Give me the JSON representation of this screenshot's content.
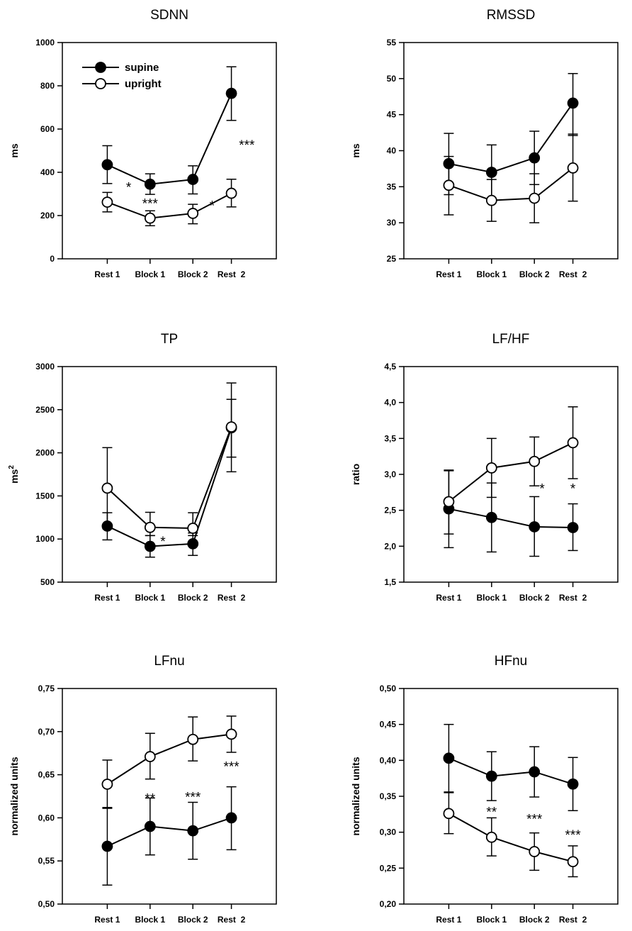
{
  "chart_data": [
    {
      "type": "line",
      "title": "SDNN",
      "ylabel": "ms",
      "ylabel_sup": "",
      "ylim": [
        0,
        1000
      ],
      "yticks": [
        "0",
        "200",
        "400",
        "600",
        "800",
        "1000"
      ],
      "categories": [
        "Rest 1",
        "Block 1",
        "Block 2",
        "Rest  2"
      ],
      "legend": [
        "supine",
        "upright"
      ],
      "series": [
        {
          "name": "supine",
          "values": [
            435,
            345,
            367,
            765
          ],
          "err_low": [
            348,
            298,
            300,
            640
          ],
          "err_high": [
            523,
            393,
            430,
            888
          ]
        },
        {
          "name": "upright",
          "values": [
            262,
            188,
            210,
            303
          ],
          "err_low": [
            217,
            153,
            162,
            240
          ],
          "err_high": [
            307,
            222,
            252,
            368
          ]
        }
      ],
      "annotations": [
        {
          "text": "*",
          "x": 0.5,
          "y": 310
        },
        {
          "text": "***",
          "x": 1.0,
          "y": 235
        },
        {
          "text": "*",
          "x": 2.5,
          "y": 225
        },
        {
          "text": "***",
          "x": 3.4,
          "y": 505
        }
      ]
    },
    {
      "type": "line",
      "title": "RMSSD",
      "ylabel": "ms",
      "ylabel_sup": "",
      "ylim": [
        25,
        55
      ],
      "yticks": [
        "25",
        "30",
        "35",
        "40",
        "45",
        "50",
        "55"
      ],
      "categories": [
        "Rest 1",
        "Block 1",
        "Block 2",
        "Rest  2"
      ],
      "legend": [],
      "series": [
        {
          "name": "supine",
          "values": [
            38.2,
            37.0,
            39.0,
            46.6
          ],
          "err_low": [
            33.9,
            33.1,
            35.3,
            42.1
          ],
          "err_high": [
            42.4,
            40.8,
            42.7,
            50.7
          ]
        },
        {
          "name": "upright",
          "values": [
            35.2,
            33.1,
            33.4,
            37.6
          ],
          "err_low": [
            31.1,
            30.2,
            30.0,
            33.0
          ],
          "err_high": [
            39.2,
            36.0,
            36.8,
            42.3
          ]
        }
      ],
      "annotations": []
    },
    {
      "type": "line",
      "title": "TP",
      "ylabel": "ms",
      "ylabel_sup": "2",
      "ylim": [
        500,
        3000
      ],
      "yticks": [
        "500",
        "1000",
        "1500",
        "2000",
        "2500",
        "3000"
      ],
      "categories": [
        "Rest 1",
        "Block 1",
        "Block 2",
        "Rest  2"
      ],
      "legend": [],
      "series": [
        {
          "name": "supine",
          "values": [
            1150,
            915,
            945,
            2290
          ],
          "err_low": [
            990,
            790,
            810,
            1950
          ],
          "err_high": [
            1305,
            1040,
            1070,
            2620
          ]
        },
        {
          "name": "upright",
          "values": [
            1590,
            1135,
            1125,
            2300
          ],
          "err_low": [
            1120,
            1040,
            1040,
            1780
          ],
          "err_high": [
            2060,
            1310,
            1305,
            2810
          ]
        }
      ],
      "annotations": [
        {
          "text": "*",
          "x": 1.3,
          "y": 920
        }
      ]
    },
    {
      "type": "line",
      "title": "LF/HF",
      "ylabel": "ratio",
      "ylabel_sup": "",
      "ylim": [
        1.5,
        4.5
      ],
      "yticks": [
        "1,5",
        "2,0",
        "2,5",
        "3,0",
        "3,5",
        "4,0",
        "4,5"
      ],
      "categories": [
        "Rest 1",
        "Block 1",
        "Block 2",
        "Rest  2"
      ],
      "legend": [],
      "series": [
        {
          "name": "supine",
          "values": [
            2.52,
            2.4,
            2.27,
            2.26
          ],
          "err_low": [
            1.98,
            1.92,
            1.86,
            1.94
          ],
          "err_high": [
            3.06,
            2.88,
            2.69,
            2.59
          ]
        },
        {
          "name": "upright",
          "values": [
            2.62,
            3.09,
            3.18,
            3.44
          ],
          "err_low": [
            2.17,
            2.68,
            2.84,
            2.94
          ],
          "err_high": [
            3.05,
            3.5,
            3.52,
            3.94
          ]
        }
      ],
      "annotations": [
        {
          "text": "*",
          "x": 2.2,
          "y": 2.74
        },
        {
          "text": "*",
          "x": 3.0,
          "y": 2.74
        }
      ]
    },
    {
      "type": "line",
      "title": "LFnu",
      "ylabel": "normalized units",
      "ylabel_sup": "",
      "ylim": [
        0.5,
        0.75
      ],
      "yticks": [
        "0,50",
        "0,55",
        "0,60",
        "0,65",
        "0,70",
        "0,75"
      ],
      "categories": [
        "Rest 1",
        "Block 1",
        "Block 2",
        "Rest  2"
      ],
      "legend": [],
      "series": [
        {
          "name": "supine",
          "values": [
            0.567,
            0.59,
            0.585,
            0.6
          ],
          "err_low": [
            0.522,
            0.557,
            0.552,
            0.563
          ],
          "err_high": [
            0.612,
            0.623,
            0.618,
            0.636
          ]
        },
        {
          "name": "upright",
          "values": [
            0.639,
            0.671,
            0.691,
            0.697
          ],
          "err_low": [
            0.611,
            0.645,
            0.666,
            0.676
          ],
          "err_high": [
            0.667,
            0.698,
            0.717,
            0.718
          ]
        }
      ],
      "annotations": [
        {
          "text": "**",
          "x": 1.0,
          "y": 0.617
        },
        {
          "text": "***",
          "x": 2.0,
          "y": 0.619
        },
        {
          "text": "***",
          "x": 3.0,
          "y": 0.654
        }
      ]
    },
    {
      "type": "line",
      "title": "HFnu",
      "ylabel": "normalized units",
      "ylabel_sup": "",
      "ylim": [
        0.2,
        0.5
      ],
      "yticks": [
        "0,20",
        "0,25",
        "0,30",
        "0,35",
        "0,40",
        "0,45",
        "0,50"
      ],
      "categories": [
        "Rest 1",
        "Block 1",
        "Block 2",
        "Rest  2"
      ],
      "legend": [],
      "series": [
        {
          "name": "supine",
          "values": [
            0.403,
            0.378,
            0.384,
            0.367
          ],
          "err_low": [
            0.356,
            0.344,
            0.349,
            0.33
          ],
          "err_high": [
            0.45,
            0.412,
            0.419,
            0.404
          ]
        },
        {
          "name": "upright",
          "values": [
            0.326,
            0.293,
            0.273,
            0.259
          ],
          "err_low": [
            0.298,
            0.267,
            0.247,
            0.238
          ],
          "err_high": [
            0.355,
            0.32,
            0.299,
            0.281
          ]
        }
      ],
      "annotations": [
        {
          "text": "**",
          "x": 1.0,
          "y": 0.322
        },
        {
          "text": "***",
          "x": 2.0,
          "y": 0.312
        },
        {
          "text": "***",
          "x": 3.0,
          "y": 0.29
        }
      ]
    }
  ]
}
